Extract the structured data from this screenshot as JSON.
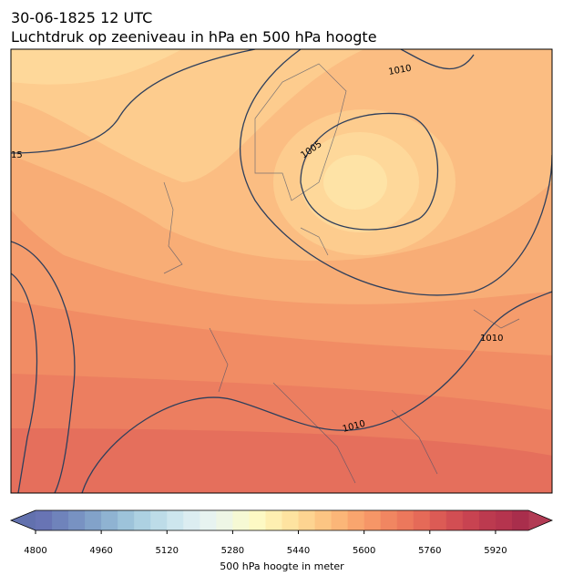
{
  "header": {
    "date": "30-06-1825 12 UTC",
    "title": "Luchtdruk op zeeniveau in hPa en 500 hPa hoogte"
  },
  "contour_labels": [
    "1010",
    "1005",
    "15",
    "1010",
    "1010"
  ],
  "colorbar": {
    "label": "500 hPa hoogte in meter",
    "lim": [
      4800,
      6000
    ],
    "ticks": [
      4800,
      4960,
      5120,
      5280,
      5440,
      5600,
      5760,
      5920
    ],
    "extend_colors": [
      "#6271ae",
      "#b23b54"
    ],
    "colors": [
      "#6874b4",
      "#6f83bb",
      "#7892c2",
      "#82a2c9",
      "#8fb3d2",
      "#9dc3da",
      "#add1e2",
      "#bddce8",
      "#cde6ee",
      "#dcedf1",
      "#e7f3f0",
      "#eef6e5",
      "#f6f9d4",
      "#fdf9c4",
      "#feefb1",
      "#fee3a0",
      "#fdd491",
      "#fcc583",
      "#fbb678",
      "#f9a56e",
      "#f69667",
      "#f18661",
      "#ec785c",
      "#e56a58",
      "#dc5b55",
      "#d24e53",
      "#c84351",
      "#bc3a4f",
      "#b5344e",
      "#a92e4c"
    ]
  }
}
